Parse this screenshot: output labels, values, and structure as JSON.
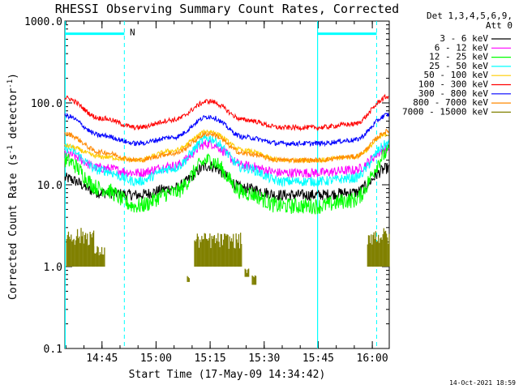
{
  "chart_data": {
    "type": "line",
    "title": "RHESSI Observing Summary Count Rates, Corrected",
    "xlabel": "Start Time (17-May-09 14:34:42)",
    "ylabel_main": "Corrected Count Rate (s",
    "ylabel_sup1": "-1",
    "ylabel_mid": " detector",
    "ylabel_sup2": "-1",
    "ylabel_end": ")",
    "yscale": "log",
    "ylim": [
      0.1,
      1000
    ],
    "y_ticks": [
      {
        "v": 0.1,
        "label": "0.1"
      },
      {
        "v": 1,
        "label": "1.0"
      },
      {
        "v": 10,
        "label": "10.0"
      },
      {
        "v": 100,
        "label": "100.0"
      },
      {
        "v": 1000,
        "label": "1000.0"
      }
    ],
    "x_unit": "minutes after 14:34:42",
    "xlim": [
      0,
      90
    ],
    "x_ticks": [
      {
        "v": 10.3,
        "label": "14:45"
      },
      {
        "v": 25.3,
        "label": "15:00"
      },
      {
        "v": 40.3,
        "label": "15:15"
      },
      {
        "v": 55.3,
        "label": "15:30"
      },
      {
        "v": 70.3,
        "label": "15:45"
      },
      {
        "v": 85.3,
        "label": "16:00"
      }
    ],
    "legend": {
      "header1": "Det 1,3,4,5,6,9,",
      "header2": "Att 0",
      "placement": "right"
    },
    "series": [
      {
        "name": "3 - 6 keV",
        "color": "#000000",
        "knots": [
          [
            0,
            12
          ],
          [
            10,
            8
          ],
          [
            20,
            7.5
          ],
          [
            30,
            9
          ],
          [
            40,
            17
          ],
          [
            50,
            9
          ],
          [
            60,
            7.5
          ],
          [
            70,
            7.5
          ],
          [
            80,
            8
          ],
          [
            90,
            16
          ]
        ]
      },
      {
        "name": "6 - 12 keV",
        "color": "#ff00ff",
        "knots": [
          [
            0,
            24
          ],
          [
            10,
            16
          ],
          [
            20,
            14
          ],
          [
            30,
            17
          ],
          [
            40,
            32
          ],
          [
            50,
            17
          ],
          [
            60,
            14
          ],
          [
            70,
            14
          ],
          [
            80,
            15
          ],
          [
            90,
            28
          ]
        ]
      },
      {
        "name": "12 - 25 keV",
        "color": "#00ff00",
        "knots": [
          [
            0,
            20
          ],
          [
            10,
            9
          ],
          [
            20,
            5.5
          ],
          [
            30,
            8
          ],
          [
            40,
            20
          ],
          [
            50,
            8
          ],
          [
            60,
            5.5
          ],
          [
            70,
            5.5
          ],
          [
            80,
            6.5
          ],
          [
            90,
            25
          ]
        ]
      },
      {
        "name": "25 - 50 keV",
        "color": "#00ffff",
        "knots": [
          [
            0,
            28
          ],
          [
            10,
            15
          ],
          [
            20,
            11
          ],
          [
            30,
            16
          ],
          [
            40,
            37
          ],
          [
            50,
            16
          ],
          [
            60,
            11
          ],
          [
            70,
            11
          ],
          [
            80,
            12
          ],
          [
            90,
            32
          ]
        ]
      },
      {
        "name": "50 - 100 keV",
        "color": "#ffcc00",
        "knots": [
          [
            0,
            30
          ],
          [
            10,
            22
          ],
          [
            20,
            20
          ],
          [
            30,
            26
          ],
          [
            40,
            45
          ],
          [
            50,
            26
          ],
          [
            60,
            20
          ],
          [
            70,
            20
          ],
          [
            80,
            22
          ],
          [
            90,
            42
          ]
        ]
      },
      {
        "name": "100 - 300 keV",
        "color": "#ff0000",
        "knots": [
          [
            0,
            115
          ],
          [
            10,
            65
          ],
          [
            20,
            50
          ],
          [
            30,
            62
          ],
          [
            40,
            105
          ],
          [
            50,
            62
          ],
          [
            60,
            50
          ],
          [
            70,
            50
          ],
          [
            80,
            55
          ],
          [
            90,
            120
          ]
        ]
      },
      {
        "name": "300 - 800 keV",
        "color": "#0000ff",
        "knots": [
          [
            0,
            70
          ],
          [
            10,
            40
          ],
          [
            20,
            32
          ],
          [
            30,
            38
          ],
          [
            40,
            68
          ],
          [
            50,
            38
          ],
          [
            60,
            32
          ],
          [
            70,
            32
          ],
          [
            80,
            35
          ],
          [
            90,
            72
          ]
        ]
      },
      {
        "name": "800 - 7000 keV",
        "color": "#ff8800",
        "knots": [
          [
            0,
            42
          ],
          [
            10,
            25
          ],
          [
            20,
            20
          ],
          [
            30,
            24
          ],
          [
            40,
            42
          ],
          [
            50,
            24
          ],
          [
            60,
            20
          ],
          [
            70,
            20
          ],
          [
            80,
            22
          ],
          [
            90,
            45
          ]
        ]
      },
      {
        "name": "7000 - 15000 keV",
        "color": "#808000",
        "knots": []
      }
    ],
    "olive_segments": [
      [
        0.5,
        8,
        1.0,
        3.0
      ],
      [
        8,
        11,
        1.0,
        1.8
      ],
      [
        36,
        49,
        1.0,
        2.6
      ],
      [
        34,
        34.5,
        0.65,
        0.8
      ],
      [
        50,
        51,
        0.75,
        0.95
      ],
      [
        52,
        53,
        0.6,
        0.8
      ],
      [
        84,
        90,
        1.0,
        3.0
      ]
    ],
    "markers": {
      "solid_vlines": [
        0,
        70
      ],
      "dashed_vlines": [
        16.5,
        86.5
      ],
      "bars": [
        [
          0,
          16.5
        ],
        [
          70,
          86.5
        ]
      ],
      "bar_level": 700,
      "bar_label": "N",
      "bar_label_x": 18
    }
  },
  "footer": {
    "timestamp": "14-Oct-2021 18:59"
  }
}
